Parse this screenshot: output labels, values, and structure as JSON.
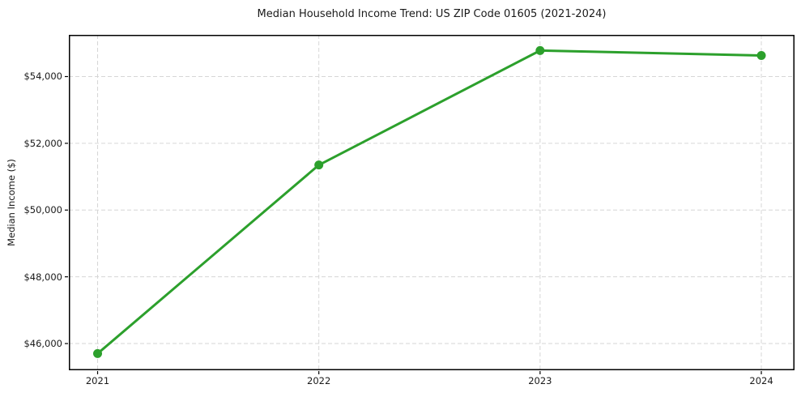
{
  "chart_data": {
    "type": "line",
    "title": "Median Household Income Trend: US ZIP Code 01605 (2021-2024)",
    "xlabel": "",
    "ylabel": "Median Income ($)",
    "categories": [
      2021,
      2022,
      2023,
      2024
    ],
    "x_tick_labels": [
      "2021",
      "2022",
      "2023",
      "2024"
    ],
    "values": [
      45700,
      51350,
      54780,
      54630
    ],
    "y_ticks": [
      {
        "value": 46000,
        "label": "$46,000"
      },
      {
        "value": 48000,
        "label": "$48,000"
      },
      {
        "value": 50000,
        "label": "$50,000"
      },
      {
        "value": 52000,
        "label": "$52,000"
      },
      {
        "value": 54000,
        "label": "$54,000"
      }
    ],
    "xlim": [
      2020.87,
      2024.15
    ],
    "ylim": [
      45200,
      55250
    ],
    "grid": true,
    "grid_style": "dashed",
    "legend_position": "none",
    "colors": {
      "line": "#2ca02c",
      "marker": "#2ca02c",
      "grid": "#d6d6d6",
      "spine": "#000000",
      "text": "#1a1a1a",
      "background": "#ffffff"
    }
  }
}
